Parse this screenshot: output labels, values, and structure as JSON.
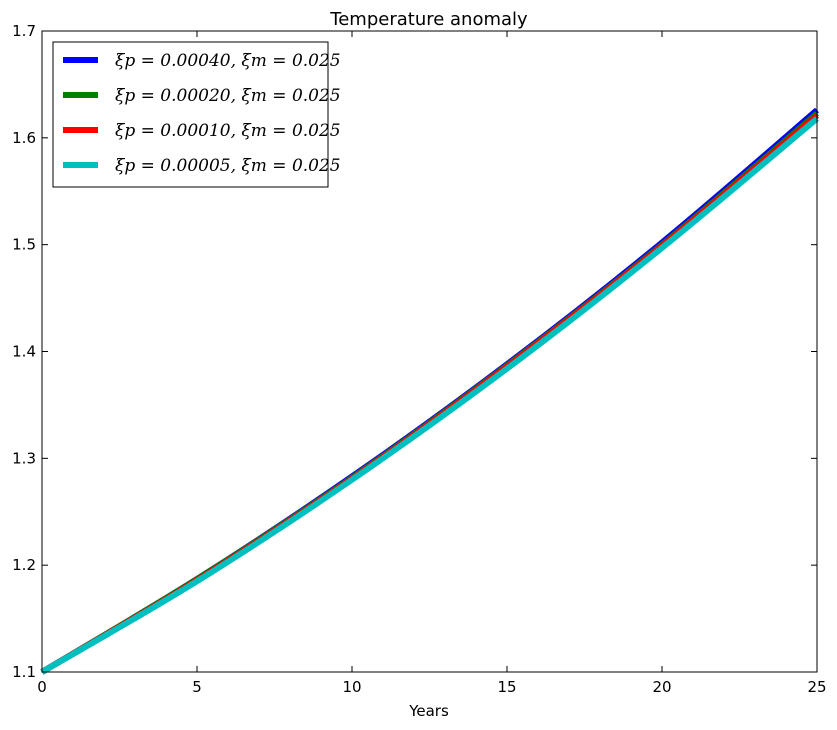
{
  "chart_data": {
    "type": "line",
    "title": "Temperature anomaly",
    "xlabel": "Years",
    "ylabel": "",
    "xlim": [
      0,
      25
    ],
    "ylim": [
      1.1,
      1.7
    ],
    "xticks": [
      0,
      5,
      10,
      15,
      20,
      25
    ],
    "xtick_labels": [
      "0",
      "5",
      "10",
      "15",
      "20",
      "25"
    ],
    "yticks": [
      1.1,
      1.2,
      1.3,
      1.4,
      1.5,
      1.6,
      1.7
    ],
    "ytick_labels": [
      "1.1",
      "1.2",
      "1.3",
      "1.4",
      "1.5",
      "1.6",
      "1.7"
    ],
    "grid": false,
    "legend_position": "top-left",
    "x": [
      0,
      5,
      10,
      15,
      20,
      25
    ],
    "series": [
      {
        "name": "ξp = 0.00040, ξm = 0.025",
        "color": "#0000ff",
        "values": [
          1.1,
          1.187,
          1.283,
          1.388,
          1.502,
          1.626
        ]
      },
      {
        "name": "ξp = 0.00020, ξm = 0.025",
        "color": "#008000",
        "values": [
          1.1,
          1.187,
          1.282,
          1.387,
          1.5,
          1.623
        ]
      },
      {
        "name": "ξp = 0.00010, ξm = 0.025",
        "color": "#ff0000",
        "values": [
          1.1,
          1.186,
          1.281,
          1.386,
          1.499,
          1.621
        ]
      },
      {
        "name": "ξp = 0.00005, ξm = 0.025",
        "color": "#00bfbf",
        "values": [
          1.1,
          1.185,
          1.28,
          1.384,
          1.497,
          1.618
        ]
      }
    ]
  }
}
